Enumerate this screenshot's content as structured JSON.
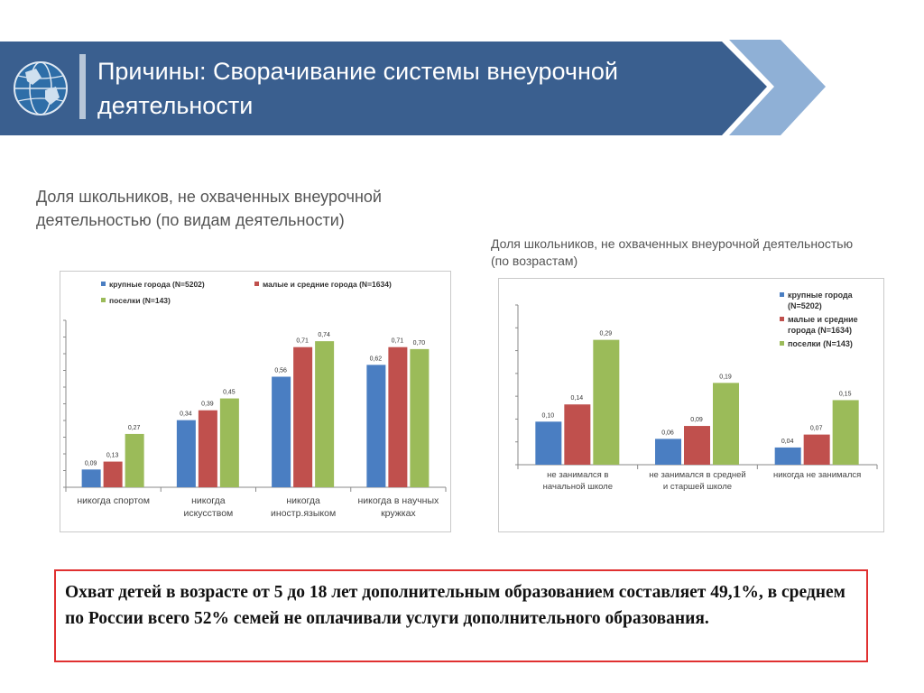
{
  "header": {
    "title": "Причины: Сворачивание системы внеурочной деятельности",
    "icon": "globe-icon",
    "colors": {
      "band": "#3a5f8f",
      "arrow": "#8fb0d6",
      "bar": "#b7c6d8"
    }
  },
  "summary": {
    "text": "Охват детей в возрасте от 5 до 18 лет дополнительным образованием составляет 49,1%, в среднем по России всего 52% семей не оплачивали услуги дополнительного образования."
  },
  "chart_data": [
    {
      "type": "bar",
      "title": "Доля школьников, не охваченных внеурочной деятельностью (по видам деятельности)",
      "categories": [
        [
          "никогда спортом"
        ],
        [
          "никогда",
          "искусством"
        ],
        [
          "никогда",
          "иностр.языком"
        ],
        [
          "никогда  в научных",
          "кружках"
        ]
      ],
      "series": [
        {
          "name": "крупные города (N=5202)",
          "color": "#4a7ec2",
          "values": [
            0.09,
            0.34,
            0.56,
            0.62
          ]
        },
        {
          "name": "малые и средние города (N=1634)",
          "color": "#c0504d",
          "values": [
            0.13,
            0.39,
            0.71,
            0.71
          ]
        },
        {
          "name": "поселки (N=143)",
          "color": "#9bbb59",
          "values": [
            0.27,
            0.45,
            0.74,
            0.7
          ]
        }
      ],
      "value_labels": [
        [
          "0,09",
          "0,34",
          "0,56",
          "0,62"
        ],
        [
          "0,13",
          "0,39",
          "0,71",
          "0,71"
        ],
        [
          "0,27",
          "0,45",
          "0,74",
          "0,70"
        ]
      ],
      "ylim": [
        0,
        0.8
      ],
      "legend": "top",
      "grid": false
    },
    {
      "type": "bar",
      "title": "Доля школьников, не охваченных внеурочной деятельностью (по возрастам)",
      "categories": [
        [
          "не занимался в",
          "начальной школе"
        ],
        [
          "не занимался в средней",
          "и старшей школе"
        ],
        [
          "никогда не занимался"
        ]
      ],
      "series": [
        {
          "name": [
            "крупные города",
            "(N=5202)"
          ],
          "color": "#4a7ec2",
          "values": [
            0.1,
            0.06,
            0.04
          ]
        },
        {
          "name": [
            "малые и средние",
            "города (N=1634)"
          ],
          "color": "#c0504d",
          "values": [
            0.14,
            0.09,
            0.07
          ]
        },
        {
          "name": [
            "поселки (N=143)"
          ],
          "color": "#9bbb59",
          "values": [
            0.29,
            0.19,
            0.15
          ]
        }
      ],
      "value_labels": [
        [
          "0,10",
          "0,06",
          "0,04"
        ],
        [
          "0,14",
          "0,09",
          "0,07"
        ],
        [
          "0,29",
          "0,19",
          "0,15"
        ]
      ],
      "ylim": [
        0,
        0.35
      ],
      "legend": "right",
      "grid": false
    }
  ]
}
